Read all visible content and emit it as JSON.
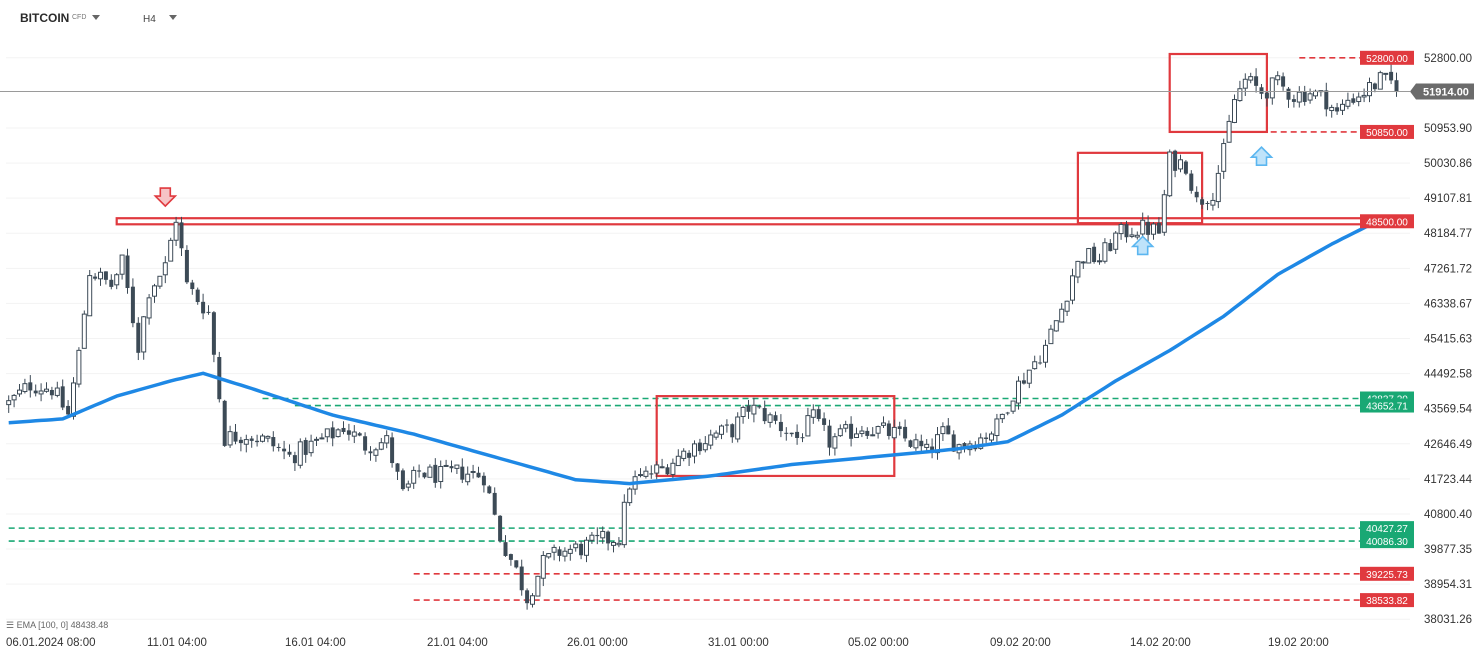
{
  "header": {
    "symbol": "BITCOIN",
    "symbol_sub": "CFD",
    "timeframe": "H4"
  },
  "indicator": {
    "icon": "bars-icon",
    "label": "EMA",
    "params": "[100, 0]",
    "value": "48438.48"
  },
  "chart_data": {
    "type": "candlestick",
    "title": "",
    "x_ticks": [
      "06.01.2024 08:00",
      "11.01 04:00",
      "16.01 04:00",
      "21.01 04:00",
      "26.01 00:00",
      "31.01 00:00",
      "05.02 00:00",
      "09.02 20:00",
      "14.02 20:00",
      "19.02 20:00"
    ],
    "y_ticks": [
      "52800.00",
      "50953.90",
      "50030.86",
      "49107.81",
      "48184.77",
      "47261.72",
      "46338.67",
      "45415.63",
      "44492.58",
      "43569.54",
      "42646.49",
      "41723.44",
      "40800.40",
      "39877.35",
      "38954.31",
      "38031.26"
    ],
    "ylim": [
      37800,
      53400
    ],
    "current_price": "51914.00",
    "price_trajectory": [
      [
        0,
        43700
      ],
      [
        4,
        44200
      ],
      [
        8,
        44100
      ],
      [
        11,
        43400
      ],
      [
        13,
        45000
      ],
      [
        15,
        47200
      ],
      [
        19,
        46800
      ],
      [
        21,
        47400
      ],
      [
        24,
        45200
      ],
      [
        26,
        46700
      ],
      [
        29,
        47300
      ],
      [
        31,
        48600
      ],
      [
        33,
        46800
      ],
      [
        37,
        46100
      ],
      [
        40,
        42800
      ],
      [
        44,
        42900
      ],
      [
        48,
        42700
      ],
      [
        52,
        42300
      ],
      [
        56,
        42600
      ],
      [
        60,
        42900
      ],
      [
        62,
        43100
      ],
      [
        66,
        42600
      ],
      [
        70,
        42700
      ],
      [
        73,
        41300
      ],
      [
        76,
        41900
      ],
      [
        80,
        41800
      ],
      [
        84,
        41900
      ],
      [
        88,
        41800
      ],
      [
        91,
        40200
      ],
      [
        94,
        39300
      ],
      [
        96,
        38600
      ],
      [
        99,
        39500
      ],
      [
        102,
        39800
      ],
      [
        106,
        39900
      ],
      [
        110,
        40100
      ],
      [
        113,
        40200
      ],
      [
        115,
        41600
      ],
      [
        118,
        41800
      ],
      [
        121,
        42000
      ],
      [
        124,
        42300
      ],
      [
        127,
        42600
      ],
      [
        131,
        42900
      ],
      [
        134,
        43000
      ],
      [
        137,
        43600
      ],
      [
        140,
        43400
      ],
      [
        143,
        43100
      ],
      [
        146,
        42800
      ],
      [
        149,
        43300
      ],
      [
        152,
        42700
      ],
      [
        155,
        42900
      ],
      [
        158,
        43100
      ],
      [
        161,
        43000
      ],
      [
        164,
        42900
      ],
      [
        167,
        42700
      ],
      [
        170,
        42400
      ],
      [
        173,
        42900
      ],
      [
        176,
        42600
      ],
      [
        180,
        42800
      ],
      [
        183,
        43100
      ],
      [
        186,
        44000
      ],
      [
        189,
        44600
      ],
      [
        192,
        45200
      ],
      [
        195,
        46200
      ],
      [
        197,
        47100
      ],
      [
        199,
        47600
      ],
      [
        202,
        47500
      ],
      [
        205,
        48100
      ],
      [
        208,
        48300
      ],
      [
        211,
        48300
      ],
      [
        213,
        48200
      ],
      [
        215,
        50100
      ],
      [
        218,
        50000
      ],
      [
        220,
        49000
      ],
      [
        223,
        49300
      ],
      [
        225,
        50300
      ],
      [
        227,
        51700
      ],
      [
        229,
        52200
      ],
      [
        232,
        51900
      ],
      [
        235,
        52100
      ],
      [
        238,
        51800
      ],
      [
        241,
        51900
      ],
      [
        244,
        51700
      ],
      [
        246,
        51300
      ],
      [
        248,
        51700
      ],
      [
        251,
        51900
      ],
      [
        254,
        52200
      ],
      [
        257,
        52100
      ]
    ],
    "ema_series": {
      "name": "EMA [100, 0]",
      "points": [
        [
          0,
          43200
        ],
        [
          10,
          43300
        ],
        [
          20,
          43900
        ],
        [
          30,
          44300
        ],
        [
          36,
          44500
        ],
        [
          45,
          44100
        ],
        [
          60,
          43400
        ],
        [
          75,
          42900
        ],
        [
          90,
          42300
        ],
        [
          105,
          41700
        ],
        [
          115,
          41600
        ],
        [
          130,
          41800
        ],
        [
          145,
          42100
        ],
        [
          160,
          42300
        ],
        [
          175,
          42500
        ],
        [
          185,
          42700
        ],
        [
          195,
          43400
        ],
        [
          205,
          44300
        ],
        [
          215,
          45100
        ],
        [
          225,
          46000
        ],
        [
          235,
          47100
        ],
        [
          245,
          47900
        ],
        [
          252,
          48400
        ]
      ]
    },
    "levels": [
      {
        "value": 52800.0,
        "label": "52800.00",
        "color": "#e0393e",
        "style": "dashed",
        "from_index": 239
      },
      {
        "value": 50850.0,
        "label": "50850.00",
        "color": "#e0393e",
        "style": "dashed",
        "from_index": 230
      },
      {
        "value": 48500.0,
        "label": "48500.00",
        "color": "#e0393e",
        "style": "dashed",
        "from_index": 252
      },
      {
        "value": 43837.2,
        "label": "43837.20",
        "color": "#19a874",
        "style": "dashed",
        "from_index": 47
      },
      {
        "value": 43652.71,
        "label": "43652.71",
        "color": "#19a874",
        "style": "dashed",
        "from_index": 53
      },
      {
        "value": 40427.27,
        "label": "40427.27",
        "color": "#19a874",
        "style": "dashed",
        "from_index": 0
      },
      {
        "value": 40086.3,
        "label": "40086.30",
        "color": "#19a874",
        "style": "dashed",
        "from_index": 0
      },
      {
        "value": 39225.73,
        "label": "39225.73",
        "color": "#e0393e",
        "style": "dashed",
        "from_index": 75
      },
      {
        "value": 38533.82,
        "label": "38533.82",
        "color": "#e0393e",
        "style": "dashed",
        "from_index": 75
      }
    ],
    "zones": [
      {
        "name": "resistance-band",
        "from_index": 20,
        "to_index": 270,
        "y_low": 48420,
        "y_high": 48580,
        "color": "#e0393e"
      },
      {
        "name": "consolidation-box-1",
        "from_index": 120,
        "to_index": 164,
        "y_low": 41800,
        "y_high": 43900,
        "color": "#e0393e"
      },
      {
        "name": "consolidation-box-2",
        "from_index": 198,
        "to_index": 221,
        "y_low": 48450,
        "y_high": 50300,
        "color": "#e0393e"
      },
      {
        "name": "consolidation-box-3",
        "from_index": 215,
        "to_index": 233,
        "y_low": 50850,
        "y_high": 52900,
        "color": "#e0393e"
      }
    ],
    "arrows": [
      {
        "direction": "down",
        "index": 29,
        "value": 48900,
        "color": "#e0393e"
      },
      {
        "direction": "up",
        "index": 210,
        "value": 48100,
        "color": "#5bb6f0"
      },
      {
        "direction": "up",
        "index": 232,
        "value": 50450,
        "color": "#5bb6f0"
      }
    ],
    "colors": {
      "candle": "#3c4a56",
      "ema": "#1e88e5",
      "current_price_bg": "#6b6b6b",
      "axis_text": "#333333"
    }
  }
}
